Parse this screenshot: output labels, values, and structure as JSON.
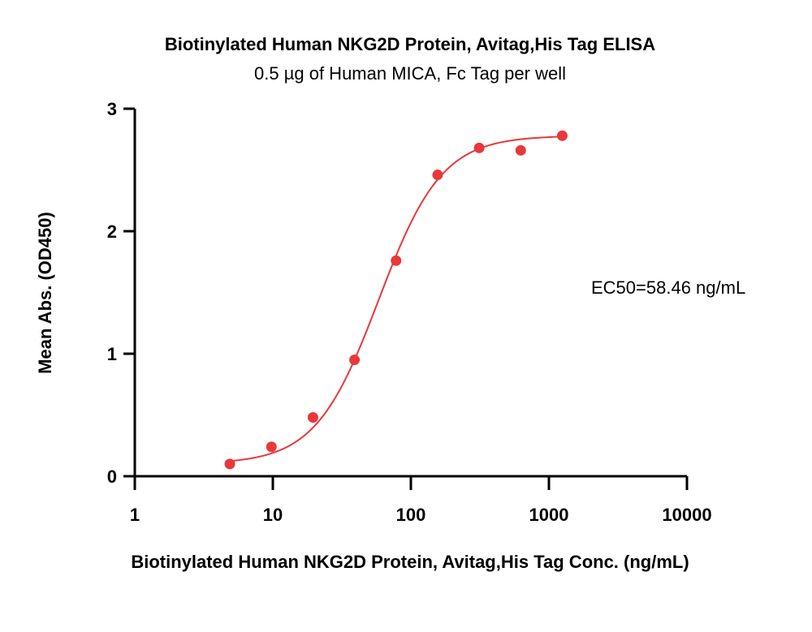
{
  "chart_data": {
    "type": "scatter",
    "title": "Biotinylated Human NKG2D Protein, Avitag,His Tag ELISA",
    "subtitle": "0.5 µg of Human MICA, Fc Tag per well",
    "xlabel": "Biotinylated Human NKG2D Protein, Avitag,His Tag Conc. (ng/mL)",
    "ylabel": "Mean Abs. (OD450)",
    "x_scale": "log",
    "xlim": [
      1,
      10000
    ],
    "ylim": [
      0,
      3
    ],
    "x_ticks": [
      "1",
      "10",
      "100",
      "1000",
      "10000"
    ],
    "y_ticks": [
      "0",
      "1",
      "2",
      "3"
    ],
    "grid": false,
    "annotation": "EC50=58.46 ng/mL",
    "color": "#e8383b",
    "series": [
      {
        "x": [
          4.88,
          9.77,
          19.53,
          39.06,
          78.13,
          156.25,
          312.5,
          625,
          1250
        ],
        "y": [
          0.1,
          0.24,
          0.48,
          0.95,
          1.76,
          2.46,
          2.68,
          2.66,
          2.78
        ]
      }
    ],
    "fit": {
      "model": "4PL",
      "bottom": 0.1,
      "top": 2.78,
      "ec50": 58.46,
      "hill": 1.9
    }
  }
}
